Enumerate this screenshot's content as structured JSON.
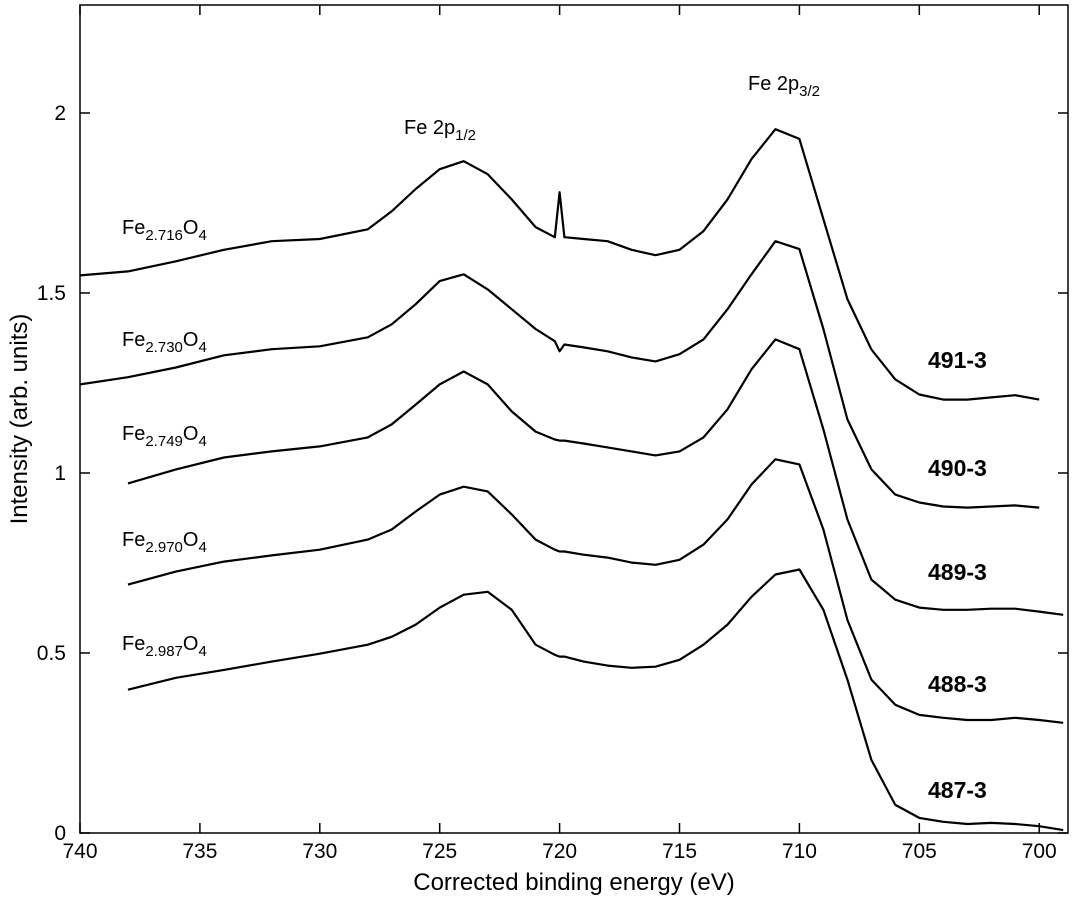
{
  "chart_data": {
    "type": "line",
    "xlabel": "Corrected binding energy (eV)",
    "ylabel": "Intensity (arb. units)",
    "xlim": [
      740,
      698.8
    ],
    "ylim": [
      0,
      2.3
    ],
    "xticks": [
      740,
      735,
      730,
      725,
      720,
      715,
      710,
      705,
      700
    ],
    "yticks": [
      0,
      0.5,
      1,
      1.5,
      2
    ],
    "x": [
      740,
      738,
      736,
      734,
      732,
      730,
      728,
      727,
      726,
      725,
      724,
      723,
      722,
      721,
      720.2,
      720,
      719.8,
      719,
      718,
      717,
      716,
      715,
      714,
      713,
      712,
      711,
      710,
      709,
      708,
      707,
      706,
      705,
      704,
      703,
      702,
      701,
      700,
      699
    ],
    "annotations": [
      {
        "parts": [
          "Fe 2p",
          "1/2"
        ]
      },
      {
        "parts": [
          "Fe 2p",
          "3/2"
        ]
      }
    ],
    "series": [
      {
        "name": "491-3",
        "formula": [
          "Fe",
          "2.716",
          "O",
          "4"
        ],
        "color": "#000000",
        "values": [
          1.549,
          1.56,
          1.588,
          1.62,
          1.644,
          1.65,
          1.677,
          1.727,
          1.789,
          1.844,
          1.866,
          1.83,
          1.76,
          1.683,
          1.655,
          1.78,
          1.655,
          1.65,
          1.644,
          1.62,
          1.605,
          1.62,
          1.672,
          1.76,
          1.872,
          1.955,
          1.928,
          1.705,
          1.483,
          1.343,
          1.26,
          1.218,
          1.204,
          1.204,
          1.21,
          1.216,
          1.204,
          null
        ]
      },
      {
        "name": "490-3",
        "formula": [
          "Fe",
          "2.730",
          "O",
          "4"
        ],
        "color": "#000000",
        "values": [
          1.246,
          1.266,
          1.293,
          1.327,
          1.344,
          1.352,
          1.377,
          1.413,
          1.469,
          1.533,
          1.552,
          1.51,
          1.455,
          1.4,
          1.366,
          1.338,
          1.357,
          1.349,
          1.338,
          1.321,
          1.31,
          1.33,
          1.371,
          1.455,
          1.552,
          1.644,
          1.622,
          1.4,
          1.149,
          1.01,
          0.94,
          0.918,
          0.907,
          0.904,
          0.907,
          0.91,
          0.904,
          null
        ]
      },
      {
        "name": "489-3",
        "formula": [
          "Fe",
          "2.749",
          "O",
          "4"
        ],
        "color": "#000000",
        "values": [
          null,
          0.971,
          1.01,
          1.043,
          1.06,
          1.074,
          1.099,
          1.135,
          1.19,
          1.246,
          1.282,
          1.246,
          1.171,
          1.115,
          1.093,
          1.09,
          1.09,
          1.082,
          1.071,
          1.06,
          1.049,
          1.06,
          1.099,
          1.177,
          1.288,
          1.371,
          1.344,
          1.121,
          0.871,
          0.704,
          0.648,
          0.626,
          0.62,
          0.62,
          0.623,
          0.623,
          0.615,
          0.606
        ]
      },
      {
        "name": "488-3",
        "formula": [
          "Fe",
          "2.970",
          "O",
          "4"
        ],
        "color": "#000000",
        "values": [
          null,
          0.69,
          0.726,
          0.754,
          0.771,
          0.787,
          0.815,
          0.843,
          0.893,
          0.94,
          0.962,
          0.949,
          0.885,
          0.815,
          0.787,
          0.782,
          0.782,
          0.773,
          0.765,
          0.751,
          0.745,
          0.759,
          0.801,
          0.871,
          0.968,
          1.038,
          1.024,
          0.843,
          0.592,
          0.426,
          0.356,
          0.328,
          0.32,
          0.314,
          0.314,
          0.32,
          0.314,
          0.306
        ]
      },
      {
        "name": "487-3",
        "formula": [
          "Fe",
          "2.987",
          "O",
          "4"
        ],
        "color": "#000000",
        "values": [
          null,
          0.398,
          0.431,
          0.453,
          0.476,
          0.498,
          0.523,
          0.545,
          0.579,
          0.626,
          0.662,
          0.67,
          0.62,
          0.523,
          0.495,
          0.49,
          0.49,
          0.476,
          0.465,
          0.459,
          0.462,
          0.481,
          0.523,
          0.579,
          0.656,
          0.718,
          0.732,
          0.62,
          0.426,
          0.203,
          0.078,
          0.042,
          0.031,
          0.025,
          0.028,
          0.025,
          0.019,
          0.008
        ]
      }
    ]
  }
}
